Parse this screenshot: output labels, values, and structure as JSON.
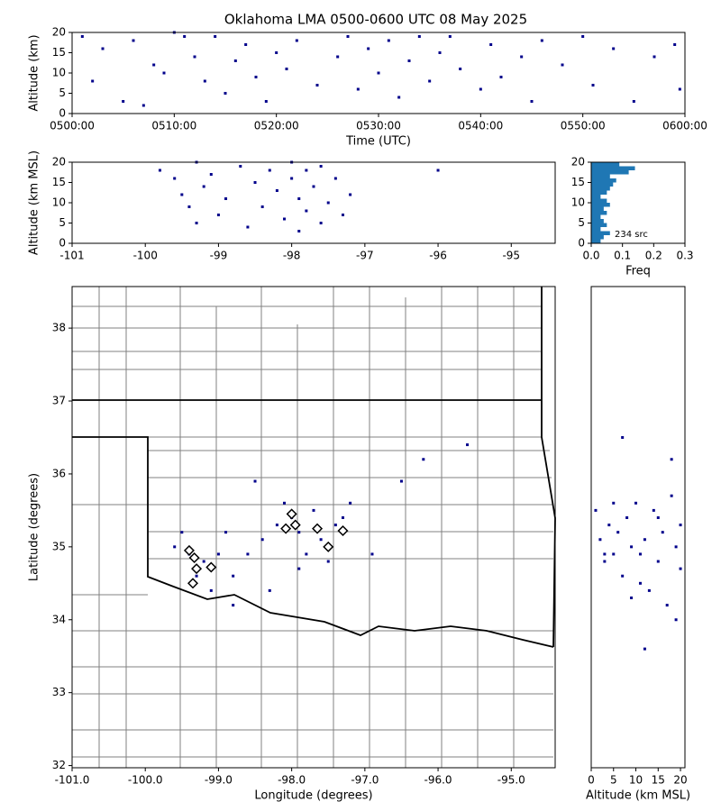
{
  "chart_data": [
    {
      "type": "scatter",
      "title": "Oklahoma LMA 0500-0600 UTC 08 May 2025",
      "xlabel": "Time (UTC)",
      "ylabel": "Altitude (km)",
      "xlim": [
        0,
        60
      ],
      "xticks": [
        {
          "value": 0,
          "label": "0500:00"
        },
        {
          "value": 10,
          "label": "0510:00"
        },
        {
          "value": 20,
          "label": "0520:00"
        },
        {
          "value": 30,
          "label": "0530:00"
        },
        {
          "value": 40,
          "label": "0540:00"
        },
        {
          "value": 50,
          "label": "0550:00"
        },
        {
          "value": 60,
          "label": "0600:00"
        }
      ],
      "ylim": [
        0,
        20
      ],
      "yticks": [
        0,
        5,
        10,
        15,
        20
      ],
      "color": "#00008b",
      "x": [
        1,
        2,
        3,
        5,
        6,
        7,
        8,
        9,
        10,
        11,
        12,
        13,
        14,
        15,
        16,
        17,
        18,
        19,
        20,
        21,
        22,
        24,
        26,
        27,
        28,
        29,
        30,
        31,
        32,
        33,
        34,
        35,
        36,
        37,
        38,
        40,
        41,
        42,
        44,
        45,
        46,
        48,
        50,
        51,
        53,
        55,
        57,
        59,
        59.5
      ],
      "values": [
        19,
        8,
        16,
        3,
        18,
        2,
        12,
        10,
        20,
        19,
        14,
        8,
        19,
        5,
        13,
        17,
        9,
        3,
        15,
        11,
        18,
        7,
        14,
        19,
        6,
        16,
        10,
        18,
        4,
        13,
        19,
        8,
        15,
        19,
        11,
        6,
        17,
        9,
        14,
        3,
        18,
        12,
        19,
        7,
        16,
        3,
        14,
        17,
        6
      ]
    },
    {
      "type": "scatter",
      "ylabel": "Altitude (km MSL)",
      "xlim": [
        -101.0,
        -94.4
      ],
      "xticks": [
        -101,
        -100,
        -99,
        -98,
        -97,
        -96,
        -95
      ],
      "ylim": [
        0,
        20
      ],
      "yticks": [
        0,
        5,
        10,
        15,
        20
      ],
      "color": "#00008b",
      "x": [
        -99.8,
        -99.6,
        -99.5,
        -99.4,
        -99.3,
        -99.3,
        -99.2,
        -99.1,
        -99.0,
        -98.9,
        -98.7,
        -98.6,
        -98.5,
        -98.4,
        -98.3,
        -98.2,
        -98.1,
        -98.0,
        -98.0,
        -97.9,
        -97.9,
        -97.8,
        -97.8,
        -97.7,
        -97.6,
        -97.6,
        -97.5,
        -97.4,
        -97.3,
        -97.2,
        -96.0
      ],
      "values": [
        18,
        16,
        12,
        9,
        20,
        5,
        14,
        17,
        7,
        11,
        19,
        4,
        15,
        9,
        18,
        13,
        6,
        20,
        16,
        3,
        11,
        18,
        8,
        14,
        5,
        19,
        10,
        16,
        7,
        12,
        18
      ]
    },
    {
      "type": "histogram",
      "xlabel": "Freq",
      "annotation": "234 src",
      "xlim": [
        0,
        0.3
      ],
      "xticks": [
        {
          "value": 0,
          "label": "0.0"
        },
        0.1,
        0.2,
        0.3
      ],
      "ylim": [
        0,
        20
      ],
      "yticks": [
        0,
        5,
        10,
        15,
        20
      ],
      "color": "#1f77b4",
      "bins": [
        0,
        1,
        2,
        3,
        4,
        5,
        6,
        7,
        8,
        9,
        10,
        11,
        12,
        13,
        14,
        15,
        16,
        17,
        18,
        19,
        20
      ],
      "values": [
        0.03,
        0.04,
        0.06,
        0.03,
        0.05,
        0.04,
        0.03,
        0.05,
        0.04,
        0.06,
        0.05,
        0.03,
        0.05,
        0.06,
        0.07,
        0.08,
        0.06,
        0.12,
        0.14,
        0.09
      ]
    },
    {
      "type": "scatter",
      "xlabel": "Longitude (degrees)",
      "ylabel": "Latitude (degrees)",
      "xlim": [
        -101.0,
        -94.4
      ],
      "xticks": [
        {
          "value": -101,
          "label": "-101.0"
        },
        {
          "value": -100,
          "label": "-100.0"
        },
        {
          "value": -99,
          "label": "-99.0"
        },
        {
          "value": -98,
          "label": "-98.0"
        },
        {
          "value": -97,
          "label": "-97.0"
        },
        {
          "value": -96,
          "label": "-96.0"
        },
        {
          "value": -95,
          "label": "-95.0"
        }
      ],
      "ylim": [
        31.97,
        38.57
      ],
      "yticks": [
        32,
        33,
        34,
        35,
        36,
        37,
        38
      ],
      "color": "#00008b",
      "x": [
        -99.4,
        -99.3,
        -99.2,
        -99.1,
        -99.0,
        -98.8,
        -98.6,
        -98.4,
        -98.2,
        -98.1,
        -98.0,
        -97.9,
        -97.8,
        -97.7,
        -97.6,
        -97.5,
        -97.4,
        -97.2,
        -96.9,
        -96.5,
        -96.2,
        -95.6,
        -99.6,
        -98.9,
        -98.5,
        -98.8,
        -97.9,
        -98.3,
        -97.3,
        -99.5
      ],
      "values": [
        34.9,
        34.6,
        34.8,
        34.4,
        34.9,
        34.6,
        34.9,
        35.1,
        35.3,
        35.6,
        35.4,
        35.2,
        34.9,
        35.5,
        35.1,
        34.8,
        35.3,
        35.6,
        34.9,
        35.9,
        36.2,
        36.4,
        35.0,
        35.2,
        35.9,
        34.2,
        34.7,
        34.4,
        35.4,
        35.2
      ],
      "station_x": [
        -99.4,
        -99.33,
        -99.3,
        -99.1,
        -99.35,
        -98.0,
        -98.08,
        -97.95,
        -97.65,
        -97.5,
        -97.3
      ],
      "station_y": [
        34.95,
        34.85,
        34.7,
        34.72,
        34.5,
        35.45,
        35.25,
        35.3,
        35.25,
        35.0,
        35.22
      ]
    },
    {
      "type": "scatter",
      "xlabel": "Altitude (km MSL)",
      "xlim": [
        0,
        21
      ],
      "xticks": [
        0,
        5,
        10,
        15,
        20
      ],
      "ylim": [
        31.97,
        38.57
      ],
      "color": "#00008b",
      "x": [
        1,
        2,
        3,
        4,
        5,
        6,
        7,
        8,
        9,
        10,
        11,
        12,
        13,
        14,
        15,
        16,
        17,
        18,
        19,
        20,
        7,
        18,
        12,
        19,
        3,
        9,
        15,
        20,
        5,
        11
      ],
      "values": [
        35.5,
        35.1,
        34.8,
        35.3,
        34.9,
        35.2,
        34.6,
        35.4,
        34.3,
        35.6,
        34.9,
        35.1,
        34.4,
        35.5,
        34.8,
        35.2,
        34.2,
        35.7,
        35.0,
        34.7,
        36.5,
        36.2,
        33.6,
        34.0,
        34.9,
        35.0,
        35.4,
        35.3,
        35.6,
        34.5
      ]
    }
  ]
}
